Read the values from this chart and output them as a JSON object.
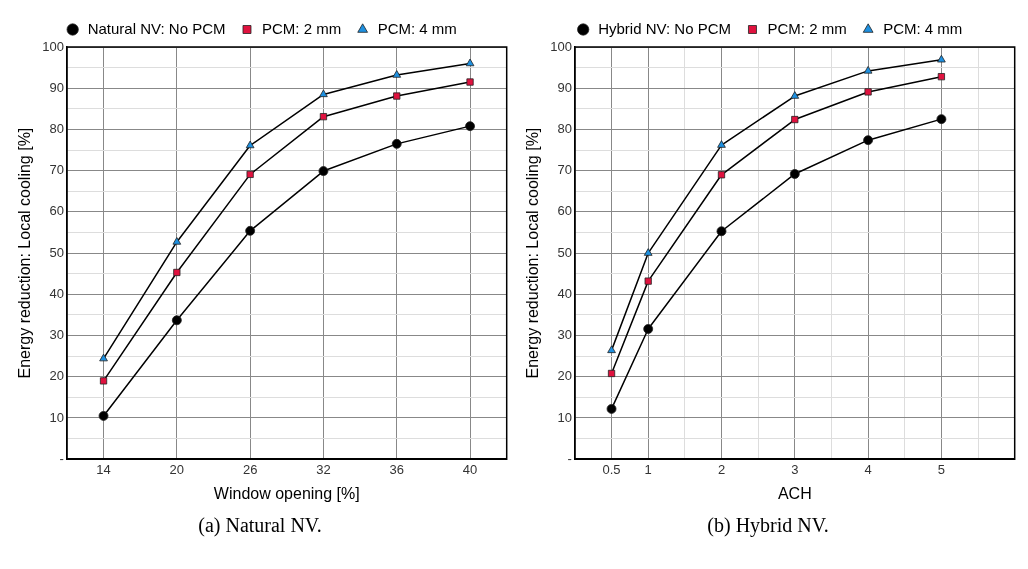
{
  "chart_data": [
    {
      "type": "line",
      "categories": [
        "14",
        "20",
        "26",
        "32",
        "36",
        "40"
      ],
      "xlabel": "Window opening [%]",
      "ylabel": "Energy reduction: Local cooling [%]",
      "ylim": [
        0,
        100
      ],
      "yticks": [
        {
          "value": 0,
          "label": "-"
        },
        {
          "value": 5,
          "label": null
        },
        10,
        {
          "value": 15,
          "label": null
        },
        20,
        {
          "value": 25,
          "label": null
        },
        30,
        {
          "value": 35,
          "label": null
        },
        40,
        {
          "value": 45,
          "label": null
        },
        50,
        {
          "value": 55,
          "label": null
        },
        60,
        {
          "value": 65,
          "label": null
        },
        70,
        {
          "value": 75,
          "label": null
        },
        80,
        {
          "value": 85,
          "label": null
        },
        90,
        {
          "value": 95,
          "label": null
        },
        100
      ],
      "grid": true,
      "legend": "top",
      "annotations": [
        "(a) Natural NV."
      ],
      "series": [
        {
          "name": "Natural NV: No PCM",
          "color": "#000000",
          "marker": "circle",
          "values": [
            10.5,
            33.7,
            55.4,
            69.9,
            76.5,
            80.8
          ]
        },
        {
          "name": "PCM: 2 mm",
          "color": "#e0123f",
          "marker": "square",
          "values": [
            19.0,
            45.3,
            69.1,
            83.1,
            88.1,
            91.5
          ]
        },
        {
          "name": "PCM: 4 mm",
          "color": "#1e90e0",
          "marker": "triangle",
          "values": [
            24.4,
            52.7,
            76.1,
            88.5,
            93.2,
            96.0
          ]
        }
      ]
    },
    {
      "type": "line",
      "x": [
        0.5,
        1,
        2,
        3,
        4,
        5
      ],
      "xlim": [
        0,
        6
      ],
      "xticks": [
        0.5,
        1,
        {
          "value": 1.5,
          "label": null
        },
        2,
        {
          "value": 2.5,
          "label": null
        },
        3,
        {
          "value": 3.5,
          "label": null
        },
        4,
        {
          "value": 4.5,
          "label": null
        },
        5,
        {
          "value": 5.5,
          "label": null
        }
      ],
      "xlabel": "ACH",
      "ylabel": "Energy reduction: Local cooling [%]",
      "ylim": [
        0,
        100
      ],
      "yticks": [
        {
          "value": 0,
          "label": "-"
        },
        {
          "value": 5,
          "label": null
        },
        10,
        {
          "value": 15,
          "label": null
        },
        20,
        {
          "value": 25,
          "label": null
        },
        30,
        {
          "value": 35,
          "label": null
        },
        40,
        {
          "value": 45,
          "label": null
        },
        50,
        {
          "value": 55,
          "label": null
        },
        60,
        {
          "value": 65,
          "label": null
        },
        70,
        {
          "value": 75,
          "label": null
        },
        80,
        {
          "value": 85,
          "label": null
        },
        90,
        {
          "value": 95,
          "label": null
        },
        100
      ],
      "grid": true,
      "legend": "top",
      "annotations": [
        "(b) Hybrid NV."
      ],
      "series": [
        {
          "name": "Hybrid NV: No PCM",
          "color": "#000000",
          "marker": "circle",
          "values": [
            12.2,
            31.6,
            55.3,
            69.2,
            77.4,
            82.5
          ]
        },
        {
          "name": "PCM: 2 mm",
          "color": "#e0123f",
          "marker": "square",
          "values": [
            20.8,
            43.2,
            69.0,
            82.4,
            89.1,
            92.8
          ]
        },
        {
          "name": "PCM: 4 mm",
          "color": "#1e90e0",
          "marker": "triangle",
          "values": [
            26.4,
            50.0,
            76.2,
            88.1,
            94.2,
            96.9
          ]
        }
      ]
    }
  ]
}
